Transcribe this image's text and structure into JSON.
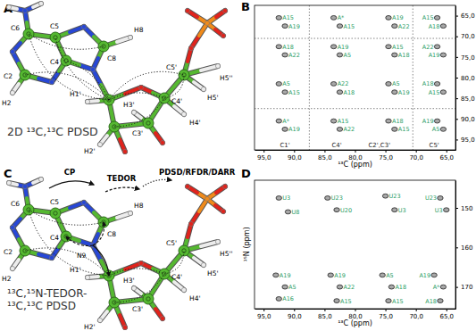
{
  "panel_labels": [
    "A",
    "B",
    "C",
    "D"
  ],
  "diagrams": [
    {
      "title": "2D ¹³C,¹³C PDSD",
      "atom_labels": [
        "C6",
        "C5",
        "C2",
        "C4",
        "C8",
        "H8",
        "H2",
        "H1'",
        "H3'",
        "C3'",
        "C4'",
        "C5'",
        "H5'",
        "H5''",
        "H4'",
        "H2'"
      ]
    },
    {
      "title_lines": [
        "¹³C,¹⁵N-TEDOR-",
        "¹³C,¹³C PDSD"
      ],
      "steps": [
        "CP",
        "TEDOR",
        "PDSD/RFDR/DARR"
      ],
      "atom_labels": [
        "C6",
        "C5",
        "C2",
        "C4",
        "C8",
        "H8",
        "H2",
        "H1'",
        "H3'",
        "C3'",
        "C4'",
        "C5'",
        "H5'",
        "H5''",
        "H4'",
        "H2'",
        "N9"
      ]
    }
  ],
  "chart_data": [
    {
      "type": "scatter",
      "color": "#a8a8a8",
      "x_label": "¹³C (ppm)",
      "xlim": [
        96.5,
        63.5
      ],
      "xticks": [
        {
          "value": 95,
          "label": "95,0"
        },
        {
          "value": 90,
          "label": "90,0"
        },
        {
          "value": 85,
          "label": "85,0"
        },
        {
          "value": 80,
          "label": "80,0"
        },
        {
          "value": 75,
          "label": "75,0"
        },
        {
          "value": 70,
          "label": "70,0"
        },
        {
          "value": 65,
          "label": "65,0"
        }
      ],
      "ylim": [
        62.5,
        97.5
      ],
      "yticks": [
        {
          "value": 65,
          "label": "65,0"
        },
        {
          "value": 70,
          "label": "70,0"
        },
        {
          "value": 75,
          "label": "75,0"
        },
        {
          "value": 80,
          "label": "80,0"
        },
        {
          "value": 85,
          "label": "85,0"
        },
        {
          "value": 90,
          "label": "90,0"
        },
        {
          "value": 95,
          "label": "95,0"
        }
      ],
      "guide_lines": [
        87.5,
        70.5
      ],
      "annotations": [
        {
          "text": "C1'",
          "x": 91.5
        },
        {
          "text": "C4'",
          "x": 83
        },
        {
          "text": "C2',C3'",
          "x": 76
        },
        {
          "text": "C5'",
          "x": 67
        }
      ],
      "peaks": [
        {
          "x": 92.5,
          "y": 65.5,
          "label": "A15"
        },
        {
          "x": 91.5,
          "y": 67.5,
          "label": "A19"
        },
        {
          "x": 83.5,
          "y": 65.5,
          "label": "A*"
        },
        {
          "x": 82.5,
          "y": 67.5,
          "label": "A15"
        },
        {
          "x": 74.5,
          "y": 65.5,
          "label": "A19"
        },
        {
          "x": 73.5,
          "y": 67.5,
          "label": "A22"
        },
        {
          "x": 66.5,
          "y": 65.5,
          "label": "A15"
        },
        {
          "x": 65.5,
          "y": 67.5,
          "label": "A18"
        },
        {
          "x": 92.5,
          "y": 72.5,
          "label": "A18"
        },
        {
          "x": 91.5,
          "y": 74.5,
          "label": "A22"
        },
        {
          "x": 83.5,
          "y": 72.5,
          "label": "A19"
        },
        {
          "x": 82.5,
          "y": 74.5,
          "label": "A5"
        },
        {
          "x": 74.5,
          "y": 72.5,
          "label": "A15"
        },
        {
          "x": 73.5,
          "y": 74.5,
          "label": "A18"
        },
        {
          "x": 66.5,
          "y": 72.5,
          "label": "A22"
        },
        {
          "x": 65.5,
          "y": 74.5,
          "label": "A19"
        },
        {
          "x": 92.5,
          "y": 81.5,
          "label": "A5"
        },
        {
          "x": 91.5,
          "y": 83.5,
          "label": "A15"
        },
        {
          "x": 83.5,
          "y": 81.5,
          "label": "A22"
        },
        {
          "x": 82.5,
          "y": 83.5,
          "label": "A18"
        },
        {
          "x": 74.5,
          "y": 81.5,
          "label": "A5"
        },
        {
          "x": 73.5,
          "y": 83.5,
          "label": "A19"
        },
        {
          "x": 66.5,
          "y": 81.5,
          "label": "A18"
        },
        {
          "x": 65.5,
          "y": 83.5,
          "label": "A15"
        },
        {
          "x": 92.5,
          "y": 90.5,
          "label": "A*"
        },
        {
          "x": 91.5,
          "y": 92.5,
          "label": "A19"
        },
        {
          "x": 83.5,
          "y": 90.5,
          "label": "A15"
        },
        {
          "x": 82.5,
          "y": 92.5,
          "label": "A22"
        },
        {
          "x": 74.5,
          "y": 90.5,
          "label": "A18"
        },
        {
          "x": 73.5,
          "y": 92.5,
          "label": "A15"
        },
        {
          "x": 66.5,
          "y": 90.5,
          "label": "A19"
        },
        {
          "x": 65.5,
          "y": 92.5,
          "label": "A5"
        }
      ]
    },
    {
      "type": "scatter",
      "color": "#a8a8a8",
      "x_label": "¹³C (ppm)",
      "y_label": "¹⁵N (ppm)",
      "xlim": [
        96.5,
        63.5
      ],
      "xticks": [
        {
          "value": 95,
          "label": "95,0"
        },
        {
          "value": 90,
          "label": "90,0"
        },
        {
          "value": 85,
          "label": "85,0"
        },
        {
          "value": 80,
          "label": "80,0"
        },
        {
          "value": 75,
          "label": "75,0"
        },
        {
          "value": 70,
          "label": "70,0"
        },
        {
          "value": 65,
          "label": "65,0"
        }
      ],
      "ylim": [
        143,
        175.5
      ],
      "yticks": [
        150,
        160,
        170
      ],
      "peaks": [
        {
          "x": 92.5,
          "y": 147.5,
          "label": "U3"
        },
        {
          "x": 91,
          "y": 151,
          "label": "U8"
        },
        {
          "x": 84.5,
          "y": 147.5,
          "label": "U23"
        },
        {
          "x": 83,
          "y": 150.5,
          "label": "U20"
        },
        {
          "x": 75,
          "y": 147,
          "label": "U23"
        },
        {
          "x": 73.5,
          "y": 150.5,
          "label": "U3"
        },
        {
          "x": 66,
          "y": 147.5,
          "label": "U23"
        },
        {
          "x": 65,
          "y": 150.5,
          "label": "U3"
        },
        {
          "x": 93,
          "y": 167,
          "label": "A19"
        },
        {
          "x": 91.5,
          "y": 170,
          "label": "A5"
        },
        {
          "x": 92.5,
          "y": 173,
          "label": "A16"
        },
        {
          "x": 84,
          "y": 167,
          "label": "A19"
        },
        {
          "x": 82.5,
          "y": 170,
          "label": "A22"
        },
        {
          "x": 83,
          "y": 173.5,
          "label": "A15"
        },
        {
          "x": 75.5,
          "y": 167,
          "label": "A5"
        },
        {
          "x": 74,
          "y": 170,
          "label": "A18"
        },
        {
          "x": 74.5,
          "y": 173.5,
          "label": "A15"
        },
        {
          "x": 67,
          "y": 167,
          "label": "A19"
        },
        {
          "x": 65.5,
          "y": 170,
          "label": "A*"
        },
        {
          "x": 66,
          "y": 173.5,
          "label": "A18"
        }
      ]
    }
  ]
}
